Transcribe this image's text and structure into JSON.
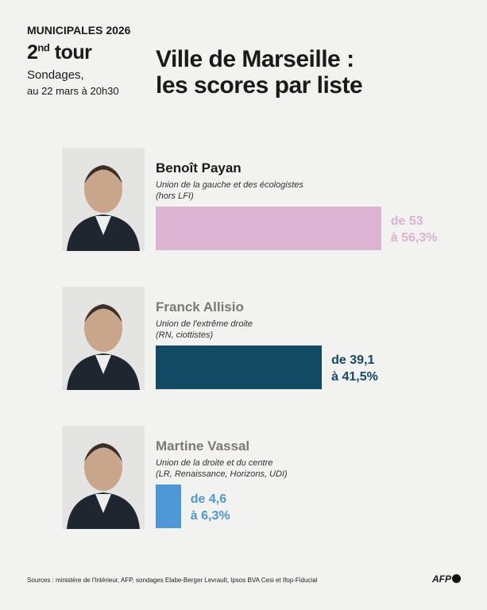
{
  "header": {
    "kicker": "MUNICIPALES",
    "year": "2026",
    "round": "2",
    "round_sup": "nd",
    "round_word": "tour",
    "subtitle": "Sondages,",
    "date": "au 22 mars à 20h30",
    "title": [
      "Ville de Marseille :",
      "les scores par liste"
    ]
  },
  "chart_data": {
    "type": "bar",
    "lists": [
      {
        "name": "Benoît Payan",
        "affiliation": [
          "Union de la gauche et des écologistes",
          "(hors LFI)"
        ],
        "color": "#dcb3d3",
        "name_color": "#1a1a1a",
        "low": 53,
        "high": 56.3,
        "low_label": "de 53",
        "high_label": "à 56,3%"
      },
      {
        "name": "Franck Allisio",
        "affiliation": [
          "Union de l'extrême droite",
          "(RN, ciottistes)"
        ],
        "color": "#134a63",
        "name_color": "#7d7a75",
        "low": 39.1,
        "high": 41.5,
        "low_label": "de 39,1",
        "high_label": "à 41,5%"
      },
      {
        "name": "Martine Vassal",
        "affiliation": [
          "Union de la droite et du centre",
          "(LR, Renaissance, Horizons, UDI)"
        ],
        "color": "#4f98d6",
        "name_color": "#7d7a75",
        "low": 4.6,
        "high": 6.3,
        "low_label": "de 4,6",
        "high_label": "à 6,3%"
      }
    ]
  },
  "footer": {
    "sources": "Sources : ministère de l'Intérieur, AFP, sondages Elabe-Berger Levrault, Ipsos BVA Cesi et Ifop-Fiducial",
    "logo": "AFP"
  }
}
